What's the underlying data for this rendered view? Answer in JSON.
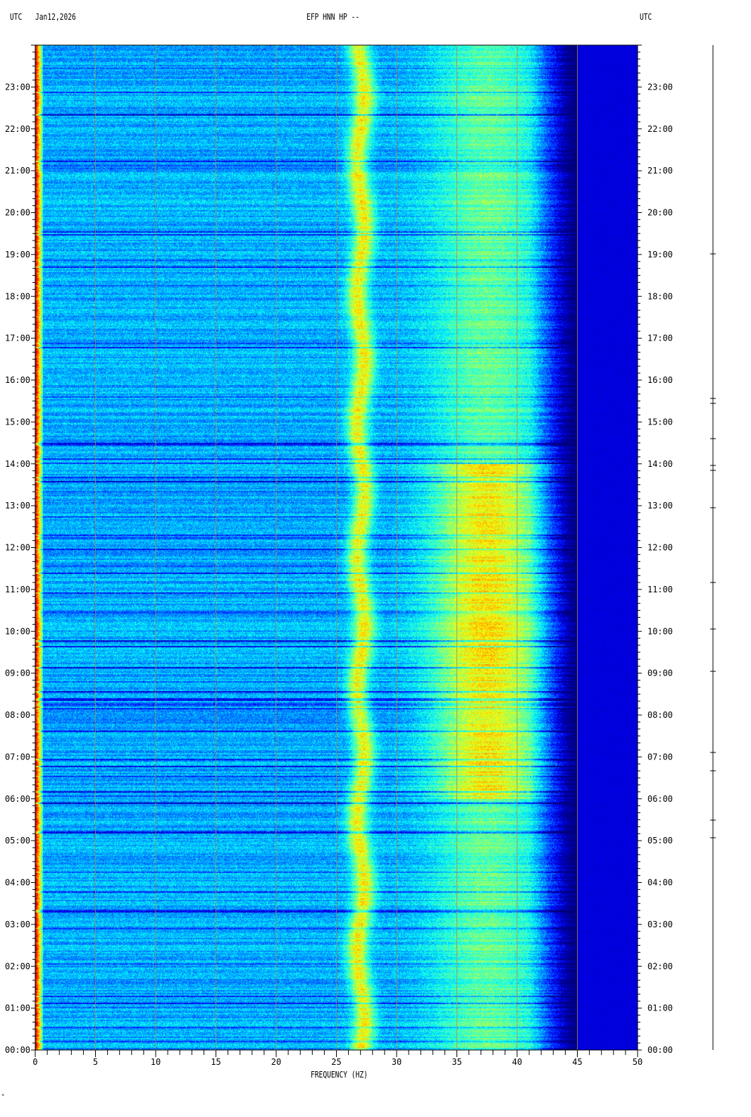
{
  "header": {
    "left_tz": "UTC",
    "date": "Jan12,2026",
    "title": "EFP HNN HP --",
    "right_tz": "UTC"
  },
  "footer_mark": "*",
  "chart_data": {
    "type": "heatmap",
    "title": "EFP HNN HP --",
    "xlabel": "FREQUENCY (HZ)",
    "ylabel": "",
    "xlim": [
      0,
      50
    ],
    "ylim_hours_utc": [
      0,
      24
    ],
    "x_ticks": [
      "0",
      "5",
      "10",
      "15",
      "20",
      "25",
      "30",
      "35",
      "40",
      "45",
      "50"
    ],
    "y_ticks_left": [
      "00:00",
      "01:00",
      "02:00",
      "03:00",
      "04:00",
      "05:00",
      "06:00",
      "07:00",
      "08:00",
      "09:00",
      "10:00",
      "11:00",
      "12:00",
      "13:00",
      "14:00",
      "15:00",
      "16:00",
      "17:00",
      "18:00",
      "19:00",
      "20:00",
      "21:00",
      "22:00",
      "23:00"
    ],
    "y_ticks_right": [
      "00:00",
      "01:00",
      "02:00",
      "03:00",
      "04:00",
      "05:00",
      "06:00",
      "07:00",
      "08:00",
      "09:00",
      "10:00",
      "11:00",
      "12:00",
      "13:00",
      "14:00",
      "15:00",
      "16:00",
      "17:00",
      "18:00",
      "19:00",
      "20:00",
      "21:00",
      "22:00",
      "23:00"
    ],
    "grid": true,
    "colormap": "jet",
    "features": {
      "low_freq_band_hz": [
        0,
        0.6
      ],
      "persistent_band_hz": [
        26,
        28
      ],
      "broad_energy_band_hz": [
        33,
        42
      ],
      "broad_energy_peak_hours": [
        6,
        14
      ],
      "rolloff_hz": 45
    }
  }
}
